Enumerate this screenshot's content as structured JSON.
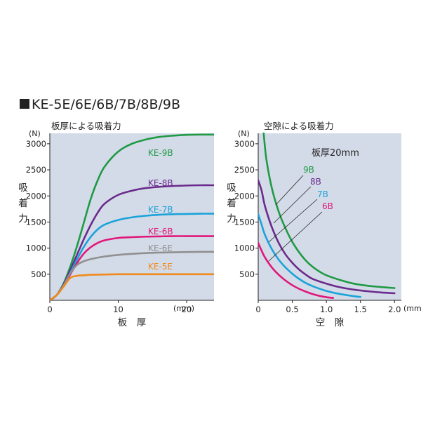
{
  "heading": "KE-5E/6E/6B/7B/8B/9B",
  "chart_data": [
    {
      "type": "line",
      "subtitle": "板厚による吸着力",
      "ylabel": "吸着力",
      "y_unit": "(N)",
      "xlabel": "板　厚",
      "x_unit": "(mm)",
      "xlim": [
        0,
        24
      ],
      "ylim": [
        0,
        3200
      ],
      "x_ticks": [
        0,
        10,
        20
      ],
      "x_tick_labels": [
        "0",
        "10",
        "20"
      ],
      "y_ticks": [
        500,
        1000,
        1500,
        2000,
        2500,
        3000
      ],
      "y_tick_labels": [
        "500",
        "1000",
        "1500",
        "2000",
        "2500",
        "3000"
      ],
      "series": [
        {
          "name": "KE-9B",
          "color": "#1f9a45",
          "points": [
            [
              0,
              0
            ],
            [
              1,
              100
            ],
            [
              2,
              320
            ],
            [
              3,
              650
            ],
            [
              4,
              1050
            ],
            [
              5,
              1500
            ],
            [
              6,
              1950
            ],
            [
              7,
              2300
            ],
            [
              8,
              2560
            ],
            [
              10,
              2850
            ],
            [
              12,
              3000
            ],
            [
              14,
              3080
            ],
            [
              16,
              3130
            ],
            [
              18,
              3155
            ],
            [
              20,
              3170
            ],
            [
              22,
              3175
            ],
            [
              24,
              3175
            ]
          ]
        },
        {
          "name": "KE-8B",
          "color": "#6a2b8c",
          "points": [
            [
              0,
              0
            ],
            [
              1,
              100
            ],
            [
              2,
              300
            ],
            [
              3,
              580
            ],
            [
              4,
              880
            ],
            [
              5,
              1180
            ],
            [
              6,
              1450
            ],
            [
              7,
              1680
            ],
            [
              8,
              1850
            ],
            [
              10,
              2020
            ],
            [
              12,
              2100
            ],
            [
              14,
              2150
            ],
            [
              16,
              2175
            ],
            [
              18,
              2190
            ],
            [
              20,
              2200
            ],
            [
              22,
              2205
            ],
            [
              24,
              2205
            ]
          ]
        },
        {
          "name": "KE-7B",
          "color": "#1aa3d9",
          "points": [
            [
              0,
              0
            ],
            [
              1,
              100
            ],
            [
              2,
              280
            ],
            [
              3,
              530
            ],
            [
              4,
              790
            ],
            [
              5,
              1030
            ],
            [
              6,
              1220
            ],
            [
              7,
              1360
            ],
            [
              8,
              1450
            ],
            [
              10,
              1540
            ],
            [
              12,
              1590
            ],
            [
              14,
              1620
            ],
            [
              16,
              1640
            ],
            [
              18,
              1650
            ],
            [
              20,
              1655
            ],
            [
              22,
              1660
            ],
            [
              24,
              1660
            ]
          ]
        },
        {
          "name": "KE-6B",
          "color": "#e0177a",
          "points": [
            [
              0,
              0
            ],
            [
              1,
              100
            ],
            [
              2,
              270
            ],
            [
              3,
              500
            ],
            [
              4,
              720
            ],
            [
              5,
              900
            ],
            [
              6,
              1020
            ],
            [
              7,
              1100
            ],
            [
              8,
              1150
            ],
            [
              10,
              1195
            ],
            [
              12,
              1210
            ],
            [
              14,
              1220
            ],
            [
              16,
              1225
            ],
            [
              18,
              1230
            ],
            [
              20,
              1230
            ],
            [
              22,
              1230
            ],
            [
              24,
              1230
            ]
          ]
        },
        {
          "name": "KE-6E",
          "color": "#909090",
          "points": [
            [
              0,
              0
            ],
            [
              1,
              100
            ],
            [
              2,
              280
            ],
            [
              3,
              520
            ],
            [
              4,
              680
            ],
            [
              5,
              750
            ],
            [
              6,
              790
            ],
            [
              8,
              840
            ],
            [
              10,
              870
            ],
            [
              12,
              890
            ],
            [
              14,
              905
            ],
            [
              16,
              915
            ],
            [
              18,
              920
            ],
            [
              20,
              925
            ],
            [
              22,
              928
            ],
            [
              24,
              930
            ]
          ]
        },
        {
          "name": "KE-5E",
          "color": "#f08a1c",
          "points": [
            [
              0,
              0
            ],
            [
              1,
              100
            ],
            [
              2,
              260
            ],
            [
              3,
              430
            ],
            [
              4,
              470
            ],
            [
              5,
              480
            ],
            [
              6,
              490
            ],
            [
              8,
              495
            ],
            [
              10,
              500
            ],
            [
              14,
              500
            ],
            [
              18,
              500
            ],
            [
              20,
              500
            ],
            [
              24,
              500
            ]
          ]
        }
      ]
    },
    {
      "type": "line",
      "subtitle": "空隙による吸着力",
      "ylabel": "吸着力",
      "y_unit": "(N)",
      "xlabel": "空　隙",
      "x_unit": "(mm)",
      "annotation": "板厚20mm",
      "xlim": [
        0,
        2.1
      ],
      "ylim": [
        0,
        3200
      ],
      "x_ticks": [
        0,
        0.5,
        1.0,
        1.5,
        2.0
      ],
      "x_tick_labels": [
        "0",
        "0.5",
        "1.0",
        "1.5",
        "2.0"
      ],
      "y_ticks": [
        500,
        1000,
        1500,
        2000,
        2500,
        3000
      ],
      "y_tick_labels": [
        "500",
        "1000",
        "1500",
        "2000",
        "2500",
        "3000"
      ],
      "series": [
        {
          "name": "9B",
          "color": "#1f9a45",
          "points": [
            [
              0.08,
              3200
            ],
            [
              0.12,
              2700
            ],
            [
              0.2,
              2150
            ],
            [
              0.3,
              1700
            ],
            [
              0.4,
              1380
            ],
            [
              0.5,
              1120
            ],
            [
              0.6,
              920
            ],
            [
              0.7,
              760
            ],
            [
              0.8,
              640
            ],
            [
              0.9,
              550
            ],
            [
              1.0,
              480
            ],
            [
              1.2,
              390
            ],
            [
              1.4,
              320
            ],
            [
              1.6,
              280
            ],
            [
              1.8,
              255
            ],
            [
              2.0,
              235
            ]
          ]
        },
        {
          "name": "8B",
          "color": "#6a2b8c",
          "points": [
            [
              0,
              2300
            ],
            [
              0.05,
              2100
            ],
            [
              0.1,
              1800
            ],
            [
              0.2,
              1400
            ],
            [
              0.3,
              1100
            ],
            [
              0.4,
              880
            ],
            [
              0.5,
              720
            ],
            [
              0.6,
              590
            ],
            [
              0.7,
              490
            ],
            [
              0.8,
              410
            ],
            [
              1.0,
              320
            ],
            [
              1.2,
              250
            ],
            [
              1.4,
              205
            ],
            [
              1.6,
              175
            ],
            [
              1.8,
              150
            ],
            [
              2.0,
              135
            ]
          ]
        },
        {
          "name": "7B",
          "color": "#1aa3d9",
          "points": [
            [
              0,
              1650
            ],
            [
              0.05,
              1450
            ],
            [
              0.1,
              1250
            ],
            [
              0.2,
              980
            ],
            [
              0.3,
              780
            ],
            [
              0.4,
              630
            ],
            [
              0.5,
              510
            ],
            [
              0.6,
              410
            ],
            [
              0.7,
              330
            ],
            [
              0.8,
              270
            ],
            [
              1.0,
              180
            ],
            [
              1.2,
              120
            ],
            [
              1.4,
              80
            ],
            [
              1.5,
              65
            ]
          ]
        },
        {
          "name": "6B",
          "color": "#e0177a",
          "points": [
            [
              0,
              1100
            ],
            [
              0.05,
              950
            ],
            [
              0.1,
              820
            ],
            [
              0.2,
              630
            ],
            [
              0.3,
              490
            ],
            [
              0.4,
              380
            ],
            [
              0.5,
              290
            ],
            [
              0.6,
              220
            ],
            [
              0.7,
              165
            ],
            [
              0.8,
              120
            ],
            [
              0.9,
              85
            ],
            [
              1.0,
              60
            ],
            [
              1.1,
              45
            ]
          ]
        }
      ]
    }
  ]
}
